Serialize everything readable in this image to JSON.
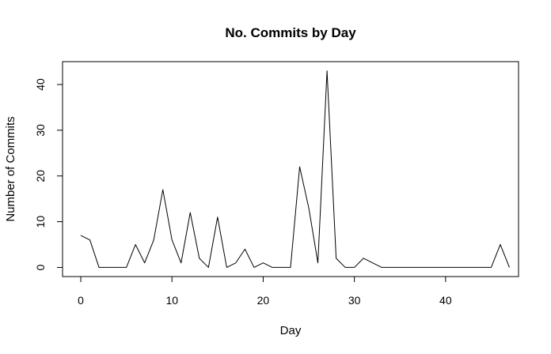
{
  "chart_data": {
    "type": "line",
    "title": "No. Commits by Day",
    "xlabel": "Day",
    "ylabel": "Number of Commits",
    "xlim": [
      -2,
      48
    ],
    "ylim": [
      -2,
      45
    ],
    "x_ticks": [
      0,
      10,
      20,
      30,
      40
    ],
    "y_ticks": [
      0,
      10,
      20,
      30,
      40
    ],
    "grid": false,
    "series": [
      {
        "color": "#000000",
        "x": [
          0,
          1,
          2,
          3,
          4,
          5,
          6,
          7,
          8,
          9,
          10,
          11,
          12,
          13,
          14,
          15,
          16,
          17,
          18,
          19,
          20,
          21,
          22,
          23,
          24,
          25,
          26,
          27,
          28,
          29,
          30,
          31,
          32,
          33,
          34,
          35,
          36,
          37,
          38,
          39,
          40,
          41,
          42,
          43,
          44,
          45,
          46,
          47
        ],
        "y": [
          7,
          6,
          0,
          0,
          0,
          0,
          5,
          1,
          6,
          17,
          6,
          1,
          12,
          2,
          0,
          11,
          0,
          1,
          4,
          0,
          1,
          0,
          0,
          0,
          22,
          13,
          1,
          43,
          2,
          0,
          0,
          2,
          1,
          0,
          0,
          0,
          0,
          0,
          0,
          0,
          0,
          0,
          0,
          0,
          0,
          0,
          5,
          0
        ]
      }
    ]
  }
}
